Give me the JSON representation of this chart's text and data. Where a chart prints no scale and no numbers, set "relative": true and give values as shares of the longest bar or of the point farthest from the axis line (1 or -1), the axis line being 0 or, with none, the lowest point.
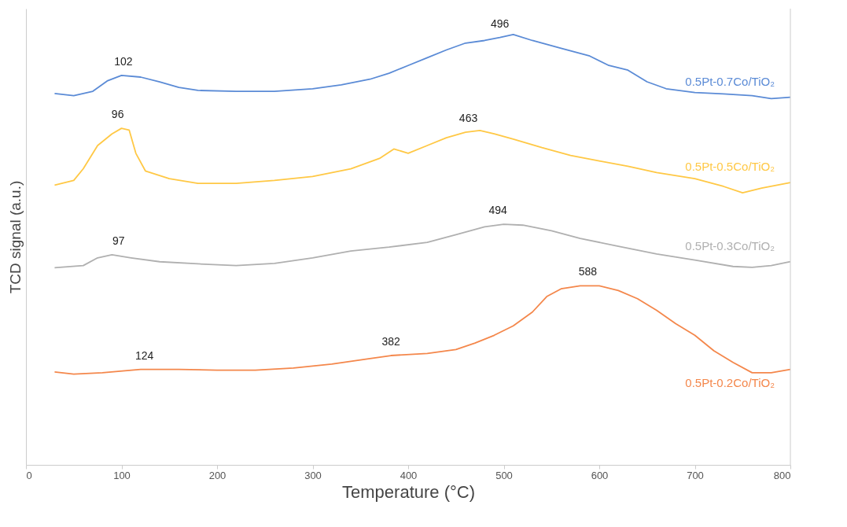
{
  "chart_data": {
    "type": "line",
    "relative": true,
    "xlabel": "Temperature (°C)",
    "ylabel": "TCD signal (a.u.)",
    "xlim": [
      0,
      800
    ],
    "xticks": [
      0,
      100,
      200,
      300,
      400,
      500,
      600,
      700,
      800
    ],
    "grid": false,
    "marker": "none",
    "line_style": "solid",
    "series": [
      {
        "name": "0.5Pt-0.7Co/TiO₂",
        "color": "#5b8bd6",
        "x": [
          30,
          50,
          70,
          85,
          100,
          120,
          140,
          160,
          180,
          220,
          260,
          300,
          330,
          360,
          380,
          400,
          420,
          440,
          460,
          480,
          496,
          510,
          530,
          560,
          590,
          610,
          630,
          650,
          670,
          700,
          730,
          760,
          780,
          800
        ],
        "values": [
          0.863,
          0.858,
          0.868,
          0.892,
          0.905,
          0.901,
          0.89,
          0.877,
          0.87,
          0.868,
          0.868,
          0.874,
          0.883,
          0.896,
          0.91,
          0.928,
          0.946,
          0.964,
          0.98,
          0.986,
          0.993,
          1.0,
          0.986,
          0.968,
          0.95,
          0.928,
          0.917,
          0.89,
          0.874,
          0.865,
          0.862,
          0.858,
          0.851,
          0.854
        ]
      },
      {
        "name": "0.5Pt-0.5Co/TiO₂",
        "color": "#ffc845",
        "x": [
          30,
          50,
          60,
          75,
          90,
          100,
          108,
          115,
          125,
          150,
          180,
          220,
          260,
          300,
          340,
          370,
          385,
          400,
          420,
          440,
          460,
          475,
          490,
          510,
          540,
          570,
          600,
          630,
          660,
          700,
          730,
          750,
          770,
          800
        ],
        "values": [
          0.65,
          0.661,
          0.688,
          0.742,
          0.769,
          0.782,
          0.778,
          0.724,
          0.683,
          0.665,
          0.654,
          0.654,
          0.661,
          0.67,
          0.688,
          0.712,
          0.734,
          0.724,
          0.742,
          0.76,
          0.773,
          0.777,
          0.769,
          0.757,
          0.737,
          0.719,
          0.706,
          0.694,
          0.679,
          0.665,
          0.647,
          0.632,
          0.643,
          0.656
        ]
      },
      {
        "name": "0.5Pt-0.3Co/TiO₂",
        "color": "#b0b0b0",
        "x": [
          30,
          60,
          75,
          90,
          110,
          140,
          180,
          220,
          260,
          300,
          340,
          380,
          420,
          450,
          480,
          500,
          520,
          550,
          580,
          620,
          660,
          700,
          740,
          760,
          780,
          800
        ],
        "values": [
          0.458,
          0.463,
          0.481,
          0.488,
          0.481,
          0.472,
          0.467,
          0.463,
          0.468,
          0.481,
          0.497,
          0.506,
          0.517,
          0.535,
          0.553,
          0.559,
          0.557,
          0.544,
          0.526,
          0.508,
          0.49,
          0.476,
          0.461,
          0.459,
          0.463,
          0.472
        ]
      },
      {
        "name": "0.5Pt-0.2Co/TiO₂",
        "color": "#f4874b",
        "x": [
          30,
          50,
          80,
          120,
          160,
          200,
          240,
          280,
          320,
          360,
          382,
          420,
          450,
          470,
          490,
          510,
          530,
          545,
          560,
          580,
          600,
          620,
          640,
          660,
          680,
          700,
          720,
          740,
          760,
          780,
          800
        ],
        "values": [
          0.216,
          0.211,
          0.214,
          0.222,
          0.222,
          0.22,
          0.22,
          0.225,
          0.234,
          0.247,
          0.254,
          0.259,
          0.268,
          0.283,
          0.301,
          0.323,
          0.355,
          0.391,
          0.409,
          0.416,
          0.416,
          0.405,
          0.386,
          0.359,
          0.328,
          0.301,
          0.265,
          0.238,
          0.214,
          0.214,
          0.222
        ]
      }
    ],
    "annotations": [
      {
        "text": "102",
        "x": 102,
        "y": 0.905
      },
      {
        "text": "496",
        "x": 496,
        "y": 0.993
      },
      {
        "text": "96",
        "x": 96,
        "y": 0.782
      },
      {
        "text": "463",
        "x": 463,
        "y": 0.773
      },
      {
        "text": "97",
        "x": 97,
        "y": 0.488
      },
      {
        "text": "494",
        "x": 494,
        "y": 0.559
      },
      {
        "text": "124",
        "x": 124,
        "y": 0.222
      },
      {
        "text": "382",
        "x": 382,
        "y": 0.254
      },
      {
        "text": "588",
        "x": 588,
        "y": 0.416
      }
    ]
  }
}
